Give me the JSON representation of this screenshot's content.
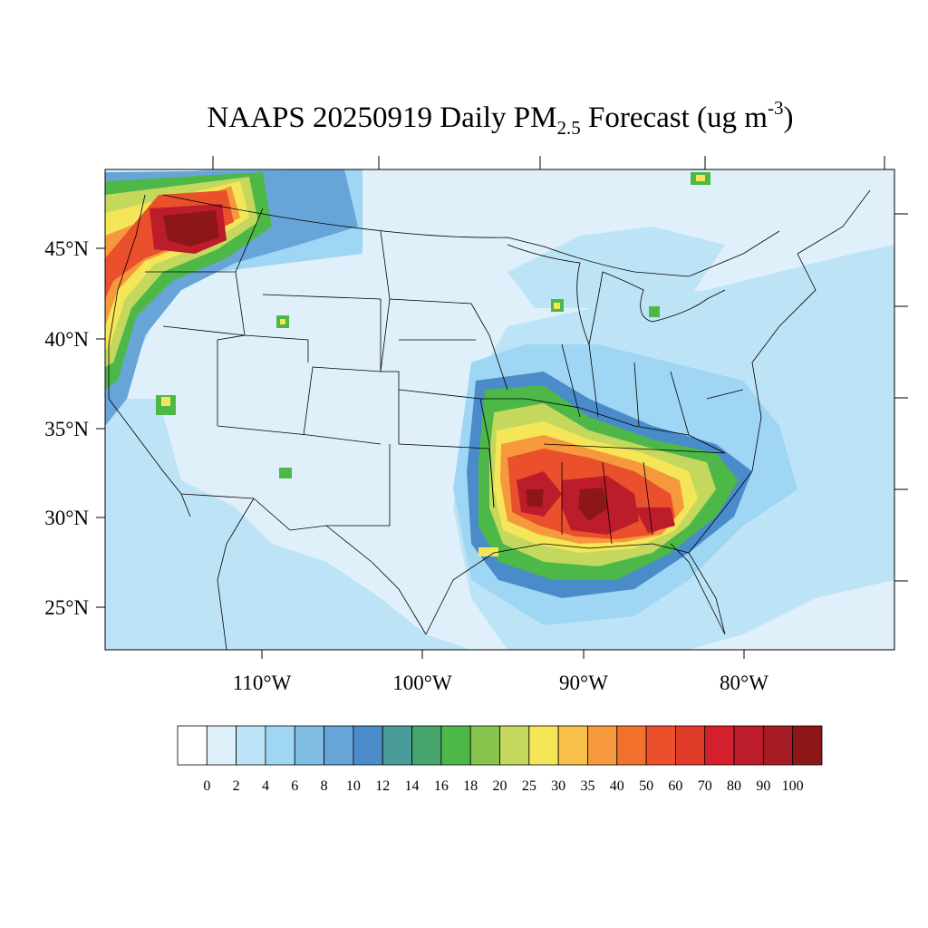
{
  "title": {
    "prefix": "NAAPS 20250919 Daily PM",
    "subscript": "2.5",
    "middle": " Forecast (ug m",
    "superscript": "-3",
    "suffix": ")"
  },
  "map": {
    "lat_labels": [
      "45°N",
      "40°N",
      "35°N",
      "30°N",
      "25°N"
    ],
    "lon_labels": [
      "110°W",
      "100°W",
      "90°W",
      "80°W"
    ],
    "land_color": "#dff0fa",
    "boundary_color": "#000000"
  },
  "colorbar": {
    "labels": [
      "0",
      "2",
      "4",
      "6",
      "8",
      "10",
      "12",
      "14",
      "16",
      "18",
      "20",
      "25",
      "30",
      "35",
      "40",
      "50",
      "60",
      "70",
      "80",
      "90",
      "100"
    ],
    "colors": [
      "#ffffff",
      "#def1fa",
      "#bde3f6",
      "#9fd6f3",
      "#80bde3",
      "#67a5d8",
      "#4a8bc9",
      "#4a9c9a",
      "#46a56d",
      "#4db848",
      "#87c54e",
      "#c4d85e",
      "#f5e659",
      "#f8bf4a",
      "#f5993c",
      "#f2722d",
      "#e9502b",
      "#df3b28",
      "#d4202c",
      "#bd1c2a",
      "#a51c22",
      "#8d1619"
    ]
  }
}
